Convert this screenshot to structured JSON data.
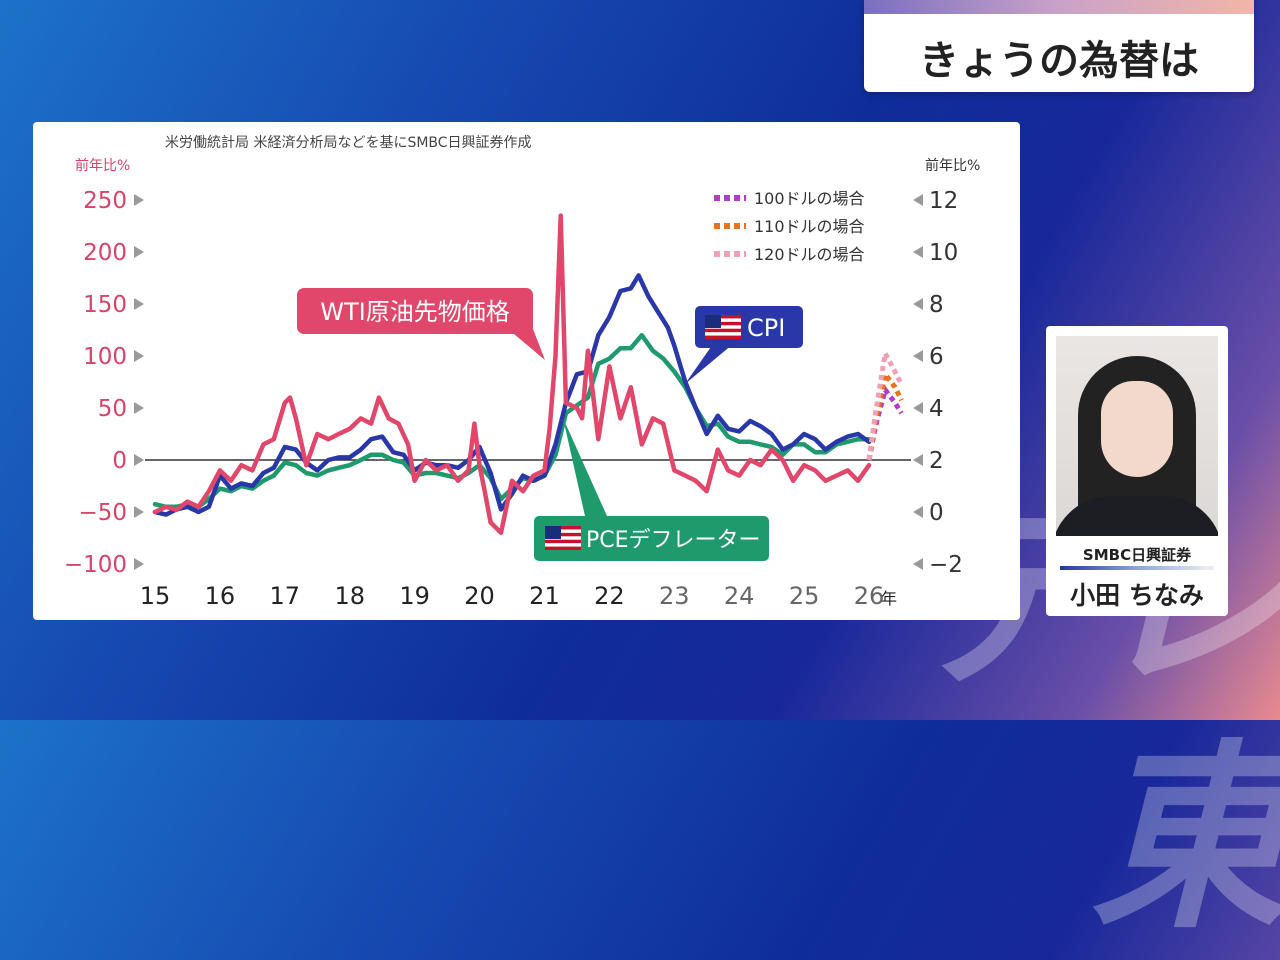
{
  "header": {
    "title": "きょうの為替は"
  },
  "broadcaster_logo": "テレ東",
  "source_note": "米労働統計局 米経済分析局などを基にSMBC日興証券作成",
  "person": {
    "company": "SMBC日興証券",
    "name": "小田 ちなみ"
  },
  "chart_data": {
    "type": "line",
    "title": "",
    "source": "米労働統計局 米経済分析局などを基にSMBC日興証券作成",
    "x_unit": "年",
    "x_ticks": [
      "15",
      "16",
      "17",
      "18",
      "19",
      "20",
      "21",
      "22",
      "23",
      "24",
      "25",
      "26"
    ],
    "left_axis": {
      "label": "前年比%",
      "ticks": [
        "250",
        "200",
        "150",
        "100",
        "50",
        "0",
        "−50",
        "−100"
      ],
      "range": [
        -100,
        250
      ],
      "color": "#d9436a"
    },
    "right_axis": {
      "label": "前年比%",
      "ticks": [
        "12",
        "10",
        "8",
        "6",
        "4",
        "2",
        "0",
        "−2"
      ],
      "range": [
        -2,
        12
      ]
    },
    "series": [
      {
        "name": "WTI原油先物価格",
        "axis": "left",
        "color": "#e0476a",
        "x": [
          2015.0,
          2015.17,
          2015.33,
          2015.5,
          2015.67,
          2015.83,
          2016.0,
          2016.17,
          2016.33,
          2016.5,
          2016.67,
          2016.83,
          2017.0,
          2017.08,
          2017.17,
          2017.33,
          2017.5,
          2017.67,
          2017.83,
          2018.0,
          2018.17,
          2018.33,
          2018.45,
          2018.6,
          2018.75,
          2018.9,
          2019.0,
          2019.17,
          2019.33,
          2019.5,
          2019.67,
          2019.83,
          2019.92,
          2020.0,
          2020.08,
          2020.17,
          2020.33,
          2020.5,
          2020.67,
          2020.83,
          2021.0,
          2021.08,
          2021.17,
          2021.25,
          2021.33,
          2021.5,
          2021.58,
          2021.67,
          2021.83,
          2022.0,
          2022.17,
          2022.33,
          2022.5,
          2022.67,
          2022.83,
          2023.0,
          2023.17,
          2023.33,
          2023.5,
          2023.67,
          2023.83,
          2024.0,
          2024.17,
          2024.33,
          2024.5,
          2024.67,
          2024.83,
          2025.0,
          2025.17,
          2025.33,
          2025.5,
          2025.67,
          2025.83,
          2026.0
        ],
        "y": [
          -50,
          -45,
          -48,
          -40,
          -45,
          -30,
          -10,
          -20,
          -5,
          -10,
          15,
          20,
          55,
          60,
          40,
          -5,
          25,
          20,
          25,
          30,
          40,
          35,
          60,
          40,
          35,
          15,
          -20,
          0,
          -10,
          -5,
          -20,
          -10,
          35,
          -5,
          -30,
          -60,
          -70,
          -20,
          -30,
          -15,
          -10,
          30,
          100,
          235,
          55,
          50,
          40,
          105,
          20,
          90,
          40,
          70,
          15,
          40,
          35,
          -10,
          -15,
          -20,
          -30,
          10,
          -10,
          -15,
          0,
          -5,
          10,
          0,
          -20,
          -5,
          -10,
          -20,
          -15,
          -10,
          -20,
          -5
        ]
      },
      {
        "name": "CPI",
        "axis": "right",
        "color": "#2a37a8",
        "x": [
          2015.0,
          2015.17,
          2015.33,
          2015.5,
          2015.67,
          2015.83,
          2016.0,
          2016.17,
          2016.33,
          2016.5,
          2016.67,
          2016.83,
          2017.0,
          2017.17,
          2017.33,
          2017.5,
          2017.67,
          2017.83,
          2018.0,
          2018.17,
          2018.33,
          2018.5,
          2018.67,
          2018.83,
          2019.0,
          2019.17,
          2019.33,
          2019.5,
          2019.67,
          2019.83,
          2020.0,
          2020.17,
          2020.33,
          2020.5,
          2020.67,
          2020.83,
          2021.0,
          2021.17,
          2021.33,
          2021.5,
          2021.67,
          2021.83,
          2022.0,
          2022.17,
          2022.33,
          2022.45,
          2022.6,
          2022.75,
          2022.9,
          2023.0,
          2023.17,
          2023.33,
          2023.5,
          2023.67,
          2023.83,
          2024.0,
          2024.17,
          2024.33,
          2024.5,
          2024.67,
          2024.83,
          2025.0,
          2025.17,
          2025.33,
          2025.5,
          2025.67,
          2025.83,
          2026.0
        ],
        "y": [
          0.0,
          -0.1,
          0.1,
          0.2,
          0.0,
          0.2,
          1.4,
          0.9,
          1.1,
          1.0,
          1.5,
          1.7,
          2.5,
          2.4,
          1.9,
          1.6,
          2.0,
          2.1,
          2.1,
          2.4,
          2.8,
          2.9,
          2.3,
          2.2,
          1.6,
          1.9,
          1.8,
          1.8,
          1.7,
          2.0,
          2.5,
          1.5,
          0.1,
          0.7,
          1.4,
          1.2,
          1.4,
          2.6,
          4.2,
          5.3,
          5.4,
          6.8,
          7.5,
          8.5,
          8.6,
          9.1,
          8.3,
          7.7,
          7.1,
          6.4,
          5.0,
          4.0,
          3.0,
          3.7,
          3.2,
          3.1,
          3.5,
          3.3,
          3.0,
          2.4,
          2.6,
          3.0,
          2.8,
          2.4,
          2.7,
          2.9,
          3.0,
          2.7
        ]
      },
      {
        "name": "PCEデフレーター",
        "axis": "right",
        "color": "#1e9a6c",
        "x": [
          2015.0,
          2015.17,
          2015.33,
          2015.5,
          2015.67,
          2015.83,
          2016.0,
          2016.17,
          2016.33,
          2016.5,
          2016.67,
          2016.83,
          2017.0,
          2017.17,
          2017.33,
          2017.5,
          2017.67,
          2017.83,
          2018.0,
          2018.17,
          2018.33,
          2018.5,
          2018.67,
          2018.83,
          2019.0,
          2019.17,
          2019.33,
          2019.5,
          2019.67,
          2019.83,
          2020.0,
          2020.17,
          2020.33,
          2020.5,
          2020.67,
          2020.83,
          2021.0,
          2021.17,
          2021.33,
          2021.5,
          2021.67,
          2021.83,
          2022.0,
          2022.17,
          2022.33,
          2022.5,
          2022.67,
          2022.83,
          2023.0,
          2023.17,
          2023.33,
          2023.5,
          2023.67,
          2023.83,
          2024.0,
          2024.17,
          2024.33,
          2024.5,
          2024.67,
          2024.83,
          2025.0,
          2025.17,
          2025.33,
          2025.5,
          2025.67,
          2025.83,
          2026.0
        ],
        "y": [
          0.3,
          0.2,
          0.2,
          0.3,
          0.2,
          0.5,
          0.9,
          0.8,
          1.0,
          0.9,
          1.2,
          1.4,
          1.9,
          1.8,
          1.5,
          1.4,
          1.6,
          1.7,
          1.8,
          2.0,
          2.2,
          2.2,
          2.0,
          1.9,
          1.4,
          1.5,
          1.5,
          1.4,
          1.3,
          1.5,
          1.8,
          1.3,
          0.5,
          0.9,
          1.3,
          1.2,
          1.4,
          2.2,
          3.8,
          4.1,
          4.4,
          5.7,
          5.9,
          6.3,
          6.3,
          6.8,
          6.2,
          5.9,
          5.4,
          4.8,
          4.0,
          3.3,
          3.4,
          2.9,
          2.7,
          2.7,
          2.6,
          2.5,
          2.2,
          2.6,
          2.6,
          2.3,
          2.3,
          2.6,
          2.7,
          2.8,
          2.8
        ]
      }
    ],
    "projections": [
      {
        "name": "100ドルの場合",
        "axis": "right",
        "color": "#b03cc8",
        "x": [
          2026.0,
          2026.1,
          2026.25,
          2026.4,
          2026.5
        ],
        "y": [
          2.0,
          3.3,
          4.7,
          4.2,
          3.8
        ]
      },
      {
        "name": "110ドルの場合",
        "axis": "right",
        "color": "#e8721e",
        "x": [
          2026.0,
          2026.1,
          2026.25,
          2026.4,
          2026.5
        ],
        "y": [
          2.0,
          3.5,
          5.3,
          4.8,
          4.3
        ]
      },
      {
        "name": "120ドルの場合",
        "axis": "right",
        "color": "#f0a0b4",
        "x": [
          2026.0,
          2026.1,
          2026.25,
          2026.4,
          2026.5
        ],
        "y": [
          2.0,
          3.8,
          6.1,
          5.4,
          4.9
        ]
      }
    ],
    "callouts": {
      "wti": "WTI原油先物価格",
      "cpi": "CPI",
      "pce": "PCEデフレーター"
    },
    "grid": false,
    "legend_position": "top-right"
  }
}
